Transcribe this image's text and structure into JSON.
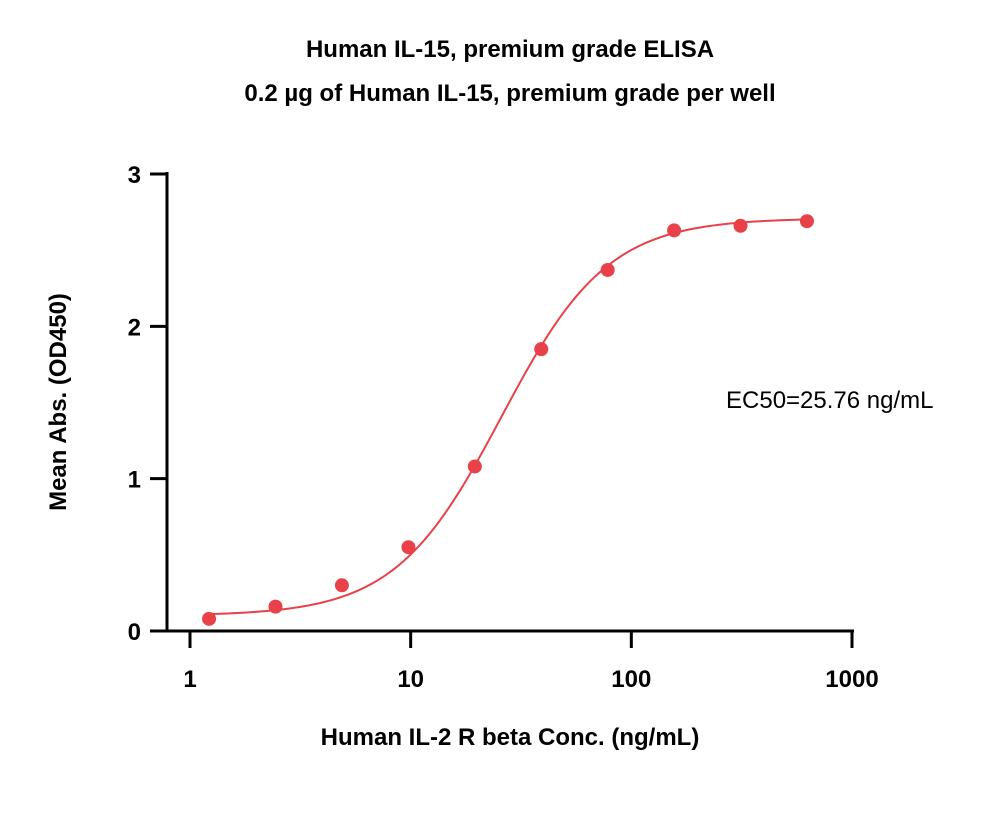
{
  "chart_data": {
    "type": "scatter",
    "title": "Human IL-15, premium grade ELISA",
    "subtitle": "0.2 µg of Human IL-15, premium grade per well",
    "xlabel": "Human IL-2 R beta Conc. (ng/mL)",
    "ylabel": "Mean Abs. (OD450)",
    "x_scale": "log",
    "xlim": [
      1,
      1000
    ],
    "ylim": [
      0,
      3
    ],
    "x_ticks": [
      1,
      10,
      100,
      1000
    ],
    "x_tick_labels": [
      "1",
      "10",
      "100",
      "1000"
    ],
    "y_ticks": [
      0,
      1,
      2,
      3
    ],
    "y_tick_labels": [
      "0",
      "1",
      "2",
      "3"
    ],
    "grid": false,
    "annotation": "EC50=25.76 ng/mL",
    "color": "#e8414a",
    "series": [
      {
        "x": [
          1.22,
          2.44,
          4.88,
          9.77,
          19.53,
          39.06,
          78.13,
          156.25,
          312.5,
          625
        ],
        "y": [
          0.08,
          0.16,
          0.3,
          0.55,
          1.08,
          1.85,
          2.37,
          2.63,
          2.66,
          2.69
        ]
      }
    ],
    "fit": {
      "model": "4PL",
      "bottom": 0.1,
      "top": 2.71,
      "ec50": 25.76,
      "hill": 1.8
    }
  }
}
